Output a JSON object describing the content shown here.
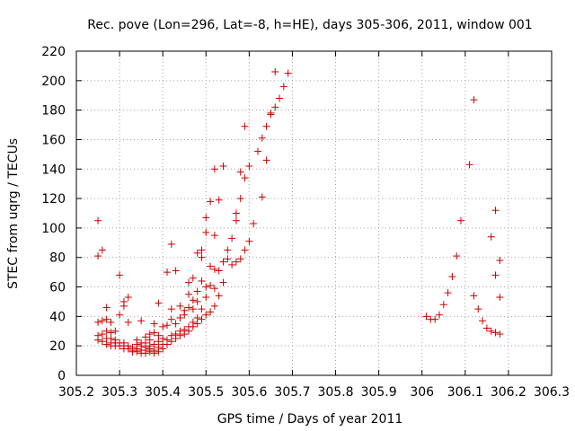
{
  "chart_data": {
    "type": "scatter",
    "title": "Rec. pove (Lon=296, Lat=-8, h=HE), days 305-306, 2011, window 001",
    "xlabel": "GPS time / Days of year 2011",
    "ylabel": "STEC from uqrg / TECUs",
    "xlim": [
      305.2,
      306.3
    ],
    "ylim": [
      0,
      220
    ],
    "xticks": [
      "305.2",
      "305.3",
      "305.4",
      "305.5",
      "305.6",
      "305.7",
      "305.8",
      "305.9",
      "306",
      "306.1",
      "306.2",
      "306.3"
    ],
    "yticks": [
      "0",
      "20",
      "40",
      "60",
      "80",
      "100",
      "120",
      "140",
      "160",
      "180",
      "200",
      "220"
    ],
    "grid": true,
    "marker": "plus",
    "color": "#cc0000",
    "points": [
      [
        305.25,
        105
      ],
      [
        305.25,
        81
      ],
      [
        305.26,
        85
      ],
      [
        305.25,
        36
      ],
      [
        305.26,
        37
      ],
      [
        305.25,
        27
      ],
      [
        305.26,
        28
      ],
      [
        305.25,
        24
      ],
      [
        305.26,
        23
      ],
      [
        305.27,
        46
      ],
      [
        305.27,
        38
      ],
      [
        305.27,
        30
      ],
      [
        305.27,
        25
      ],
      [
        305.27,
        21
      ],
      [
        305.28,
        36
      ],
      [
        305.28,
        29
      ],
      [
        305.28,
        25
      ],
      [
        305.28,
        22
      ],
      [
        305.28,
        20
      ],
      [
        305.29,
        30
      ],
      [
        305.29,
        24
      ],
      [
        305.29,
        22
      ],
      [
        305.29,
        20
      ],
      [
        305.3,
        68
      ],
      [
        305.3,
        41
      ],
      [
        305.3,
        22
      ],
      [
        305.3,
        20
      ],
      [
        305.31,
        50
      ],
      [
        305.31,
        47
      ],
      [
        305.31,
        22
      ],
      [
        305.31,
        20
      ],
      [
        305.31,
        18
      ],
      [
        305.32,
        53
      ],
      [
        305.32,
        36
      ],
      [
        305.32,
        20
      ],
      [
        305.32,
        18
      ],
      [
        305.33,
        19
      ],
      [
        305.33,
        17
      ],
      [
        305.33,
        16
      ],
      [
        305.34,
        24
      ],
      [
        305.34,
        21
      ],
      [
        305.34,
        18
      ],
      [
        305.34,
        16
      ],
      [
        305.35,
        37
      ],
      [
        305.35,
        22
      ],
      [
        305.35,
        20
      ],
      [
        305.35,
        17
      ],
      [
        305.35,
        15
      ],
      [
        305.36,
        26
      ],
      [
        305.36,
        22
      ],
      [
        305.36,
        19
      ],
      [
        305.36,
        17
      ],
      [
        305.36,
        15
      ],
      [
        305.37,
        28
      ],
      [
        305.37,
        24
      ],
      [
        305.37,
        20
      ],
      [
        305.37,
        18
      ],
      [
        305.37,
        16
      ],
      [
        305.38,
        35
      ],
      [
        305.38,
        29
      ],
      [
        305.38,
        21
      ],
      [
        305.38,
        17
      ],
      [
        305.38,
        15
      ],
      [
        305.39,
        49
      ],
      [
        305.39,
        27
      ],
      [
        305.39,
        23
      ],
      [
        305.39,
        19
      ],
      [
        305.39,
        16
      ],
      [
        305.4,
        33
      ],
      [
        305.4,
        25
      ],
      [
        305.4,
        21
      ],
      [
        305.4,
        18
      ],
      [
        305.41,
        70
      ],
      [
        305.41,
        34
      ],
      [
        305.41,
        24
      ],
      [
        305.41,
        21
      ],
      [
        305.42,
        89
      ],
      [
        305.42,
        45
      ],
      [
        305.42,
        38
      ],
      [
        305.42,
        27
      ],
      [
        305.42,
        23
      ],
      [
        305.43,
        71
      ],
      [
        305.43,
        35
      ],
      [
        305.43,
        28
      ],
      [
        305.43,
        25
      ],
      [
        305.44,
        47
      ],
      [
        305.44,
        39
      ],
      [
        305.44,
        30
      ],
      [
        305.44,
        27
      ],
      [
        305.45,
        44
      ],
      [
        305.45,
        41
      ],
      [
        305.45,
        31
      ],
      [
        305.45,
        28
      ],
      [
        305.46,
        63
      ],
      [
        305.46,
        55
      ],
      [
        305.46,
        46
      ],
      [
        305.46,
        33
      ],
      [
        305.46,
        30
      ],
      [
        305.47,
        66
      ],
      [
        305.47,
        51
      ],
      [
        305.47,
        45
      ],
      [
        305.47,
        36
      ],
      [
        305.47,
        33
      ],
      [
        305.48,
        83
      ],
      [
        305.48,
        57
      ],
      [
        305.48,
        50
      ],
      [
        305.48,
        39
      ],
      [
        305.48,
        35
      ],
      [
        305.49,
        85
      ],
      [
        305.49,
        80
      ],
      [
        305.49,
        64
      ],
      [
        305.49,
        45
      ],
      [
        305.49,
        38
      ],
      [
        305.5,
        107
      ],
      [
        305.5,
        97
      ],
      [
        305.5,
        60
      ],
      [
        305.5,
        53
      ],
      [
        305.5,
        41
      ],
      [
        305.51,
        118
      ],
      [
        305.51,
        74
      ],
      [
        305.51,
        61
      ],
      [
        305.51,
        43
      ],
      [
        305.52,
        140
      ],
      [
        305.52,
        95
      ],
      [
        305.52,
        72
      ],
      [
        305.52,
        59
      ],
      [
        305.52,
        47
      ],
      [
        305.53,
        119
      ],
      [
        305.53,
        71
      ],
      [
        305.53,
        54
      ],
      [
        305.54,
        142
      ],
      [
        305.54,
        77
      ],
      [
        305.54,
        63
      ],
      [
        305.55,
        85
      ],
      [
        305.55,
        79
      ],
      [
        305.56,
        93
      ],
      [
        305.56,
        75
      ],
      [
        305.57,
        110
      ],
      [
        305.57,
        105
      ],
      [
        305.57,
        77
      ],
      [
        305.58,
        138
      ],
      [
        305.58,
        120
      ],
      [
        305.58,
        79
      ],
      [
        305.59,
        169
      ],
      [
        305.59,
        134
      ],
      [
        305.59,
        85
      ],
      [
        305.6,
        142
      ],
      [
        305.6,
        91
      ],
      [
        305.61,
        103
      ],
      [
        305.62,
        152
      ],
      [
        305.63,
        161
      ],
      [
        305.63,
        121
      ],
      [
        305.64,
        169
      ],
      [
        305.64,
        146
      ],
      [
        305.65,
        178
      ],
      [
        305.65,
        177
      ],
      [
        305.66,
        182
      ],
      [
        305.66,
        206
      ],
      [
        305.67,
        188
      ],
      [
        305.68,
        196
      ],
      [
        305.69,
        205
      ],
      [
        306.01,
        40
      ],
      [
        306.02,
        38
      ],
      [
        306.03,
        38
      ],
      [
        306.04,
        41
      ],
      [
        306.05,
        48
      ],
      [
        306.06,
        56
      ],
      [
        306.07,
        67
      ],
      [
        306.08,
        81
      ],
      [
        306.09,
        105
      ],
      [
        306.11,
        143
      ],
      [
        306.12,
        187
      ],
      [
        306.12,
        54
      ],
      [
        306.13,
        45
      ],
      [
        306.14,
        37
      ],
      [
        306.15,
        32
      ],
      [
        306.16,
        30
      ],
      [
        306.16,
        94
      ],
      [
        306.17,
        29
      ],
      [
        306.17,
        112
      ],
      [
        306.17,
        68
      ],
      [
        306.18,
        78
      ],
      [
        306.18,
        53
      ],
      [
        306.18,
        28
      ]
    ]
  }
}
